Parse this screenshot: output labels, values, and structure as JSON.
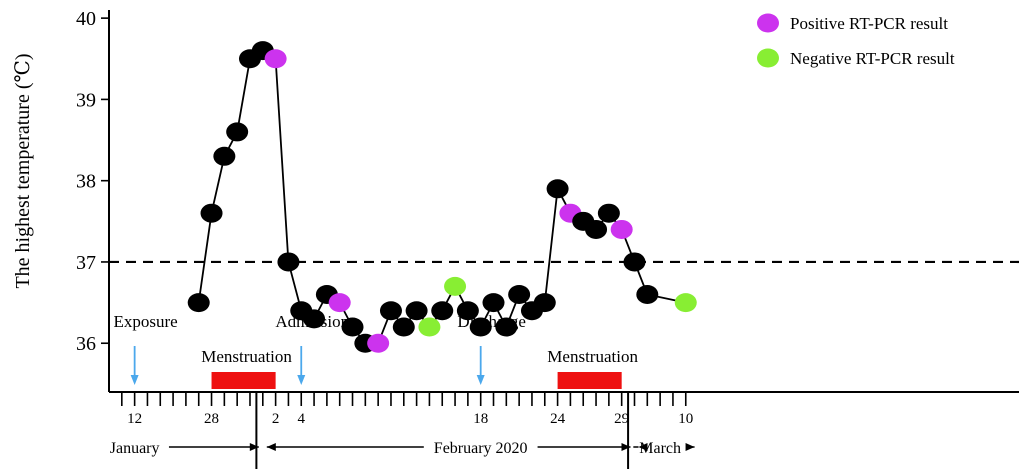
{
  "chart_data": {
    "type": "scatter",
    "ylabel": "The highest temperature (℃)",
    "ylim": [
      35.4,
      40.1
    ],
    "yticks": [
      36,
      37,
      38,
      39,
      40
    ],
    "xlim": [
      10,
      81
    ],
    "reference_line": {
      "value": 37,
      "style": "dashed"
    },
    "categories": {
      "positive": "Positive RT-PCR result",
      "negative": "Negative RT-PCR result"
    },
    "colors": {
      "normal": "#000000",
      "positive": "#cc33ee",
      "negative": "#88ee33",
      "period": "#ee1111",
      "arrow": "#4ba8ec"
    },
    "points": [
      {
        "x": 17,
        "y": 36.5,
        "status": "normal"
      },
      {
        "x": 18,
        "y": 37.6,
        "status": "normal"
      },
      {
        "x": 19,
        "y": 38.3,
        "status": "normal"
      },
      {
        "x": 20,
        "y": 38.6,
        "status": "normal"
      },
      {
        "x": 21,
        "y": 39.5,
        "status": "normal"
      },
      {
        "x": 22,
        "y": 39.6,
        "status": "normal"
      },
      {
        "x": 23,
        "y": 39.5,
        "status": "positive"
      },
      {
        "x": 24,
        "y": 37.0,
        "status": "normal"
      },
      {
        "x": 25,
        "y": 36.4,
        "status": "normal"
      },
      {
        "x": 26,
        "y": 36.3,
        "status": "normal"
      },
      {
        "x": 27,
        "y": 36.6,
        "status": "normal"
      },
      {
        "x": 28,
        "y": 36.5,
        "status": "positive"
      },
      {
        "x": 29,
        "y": 36.2,
        "status": "normal"
      },
      {
        "x": 30,
        "y": 36.0,
        "status": "normal"
      },
      {
        "x": 31,
        "y": 36.0,
        "status": "positive"
      },
      {
        "x": 32,
        "y": 36.4,
        "status": "normal"
      },
      {
        "x": 33,
        "y": 36.2,
        "status": "normal"
      },
      {
        "x": 34,
        "y": 36.4,
        "status": "normal"
      },
      {
        "x": 35,
        "y": 36.2,
        "status": "negative"
      },
      {
        "x": 36,
        "y": 36.4,
        "status": "normal"
      },
      {
        "x": 37,
        "y": 36.7,
        "status": "negative"
      },
      {
        "x": 38,
        "y": 36.4,
        "status": "normal"
      },
      {
        "x": 39,
        "y": 36.2,
        "status": "normal"
      },
      {
        "x": 40,
        "y": 36.5,
        "status": "normal"
      },
      {
        "x": 41,
        "y": 36.2,
        "status": "normal"
      },
      {
        "x": 42,
        "y": 36.6,
        "status": "normal"
      },
      {
        "x": 43,
        "y": 36.4,
        "status": "normal"
      },
      {
        "x": 44,
        "y": 36.5,
        "status": "normal"
      },
      {
        "x": 45,
        "y": 37.9,
        "status": "normal"
      },
      {
        "x": 46,
        "y": 37.6,
        "status": "positive"
      },
      {
        "x": 47,
        "y": 37.5,
        "status": "normal"
      },
      {
        "x": 48,
        "y": 37.4,
        "status": "normal"
      },
      {
        "x": 49,
        "y": 37.6,
        "status": "normal"
      },
      {
        "x": 50,
        "y": 37.4,
        "status": "positive"
      },
      {
        "x": 51,
        "y": 37.0,
        "status": "normal"
      },
      {
        "x": 52,
        "y": 36.6,
        "status": "normal"
      },
      {
        "x": 55,
        "y": 36.5,
        "status": "negative"
      }
    ],
    "xticks": [
      {
        "x": 11,
        "label": ""
      },
      {
        "x": 12,
        "label": "12"
      },
      {
        "x": 13,
        "label": ""
      },
      {
        "x": 14,
        "label": ""
      },
      {
        "x": 15,
        "label": ""
      },
      {
        "x": 16,
        "label": ""
      },
      {
        "x": 17,
        "label": ""
      },
      {
        "x": 18,
        "label": "28"
      },
      {
        "x": 19,
        "label": ""
      },
      {
        "x": 20,
        "label": ""
      },
      {
        "x": 21,
        "label": ""
      },
      {
        "x": 22,
        "label": ""
      },
      {
        "x": 23,
        "label": "2"
      },
      {
        "x": 24,
        "label": ""
      },
      {
        "x": 25,
        "label": "4"
      },
      {
        "x": 26,
        "label": ""
      },
      {
        "x": 27,
        "label": ""
      },
      {
        "x": 28,
        "label": ""
      },
      {
        "x": 29,
        "label": ""
      },
      {
        "x": 30,
        "label": ""
      },
      {
        "x": 31,
        "label": ""
      },
      {
        "x": 32,
        "label": ""
      },
      {
        "x": 33,
        "label": ""
      },
      {
        "x": 34,
        "label": ""
      },
      {
        "x": 35,
        "label": ""
      },
      {
        "x": 36,
        "label": ""
      },
      {
        "x": 37,
        "label": ""
      },
      {
        "x": 38,
        "label": ""
      },
      {
        "x": 39,
        "label": "18"
      },
      {
        "x": 40,
        "label": ""
      },
      {
        "x": 41,
        "label": ""
      },
      {
        "x": 42,
        "label": ""
      },
      {
        "x": 43,
        "label": ""
      },
      {
        "x": 44,
        "label": ""
      },
      {
        "x": 45,
        "label": "24"
      },
      {
        "x": 46,
        "label": ""
      },
      {
        "x": 47,
        "label": ""
      },
      {
        "x": 48,
        "label": ""
      },
      {
        "x": 49,
        "label": ""
      },
      {
        "x": 50,
        "label": "29"
      },
      {
        "x": 51,
        "label": ""
      },
      {
        "x": 52,
        "label": ""
      },
      {
        "x": 53,
        "label": ""
      },
      {
        "x": 54,
        "label": ""
      },
      {
        "x": 55,
        "label": "10"
      }
    ],
    "month_dividers": [
      21.5,
      50.5
    ],
    "months": [
      {
        "label": "January",
        "x": 12,
        "arrow_to": 22
      },
      {
        "label": "February 2020",
        "x": 39,
        "arrow_from": 22,
        "arrow_to": 51
      },
      {
        "label": "March",
        "x": 53,
        "arrow_from": 51,
        "arrow_to": 56
      }
    ],
    "events": [
      {
        "label": "Exposure",
        "x": 12
      },
      {
        "label": "Admission",
        "x": 25
      },
      {
        "label": "Discharge",
        "x": 39
      }
    ],
    "periods": [
      {
        "label": "Menstruation",
        "start": 18,
        "end": 23
      },
      {
        "label": "Menstruation",
        "start": 45,
        "end": 50
      }
    ]
  }
}
